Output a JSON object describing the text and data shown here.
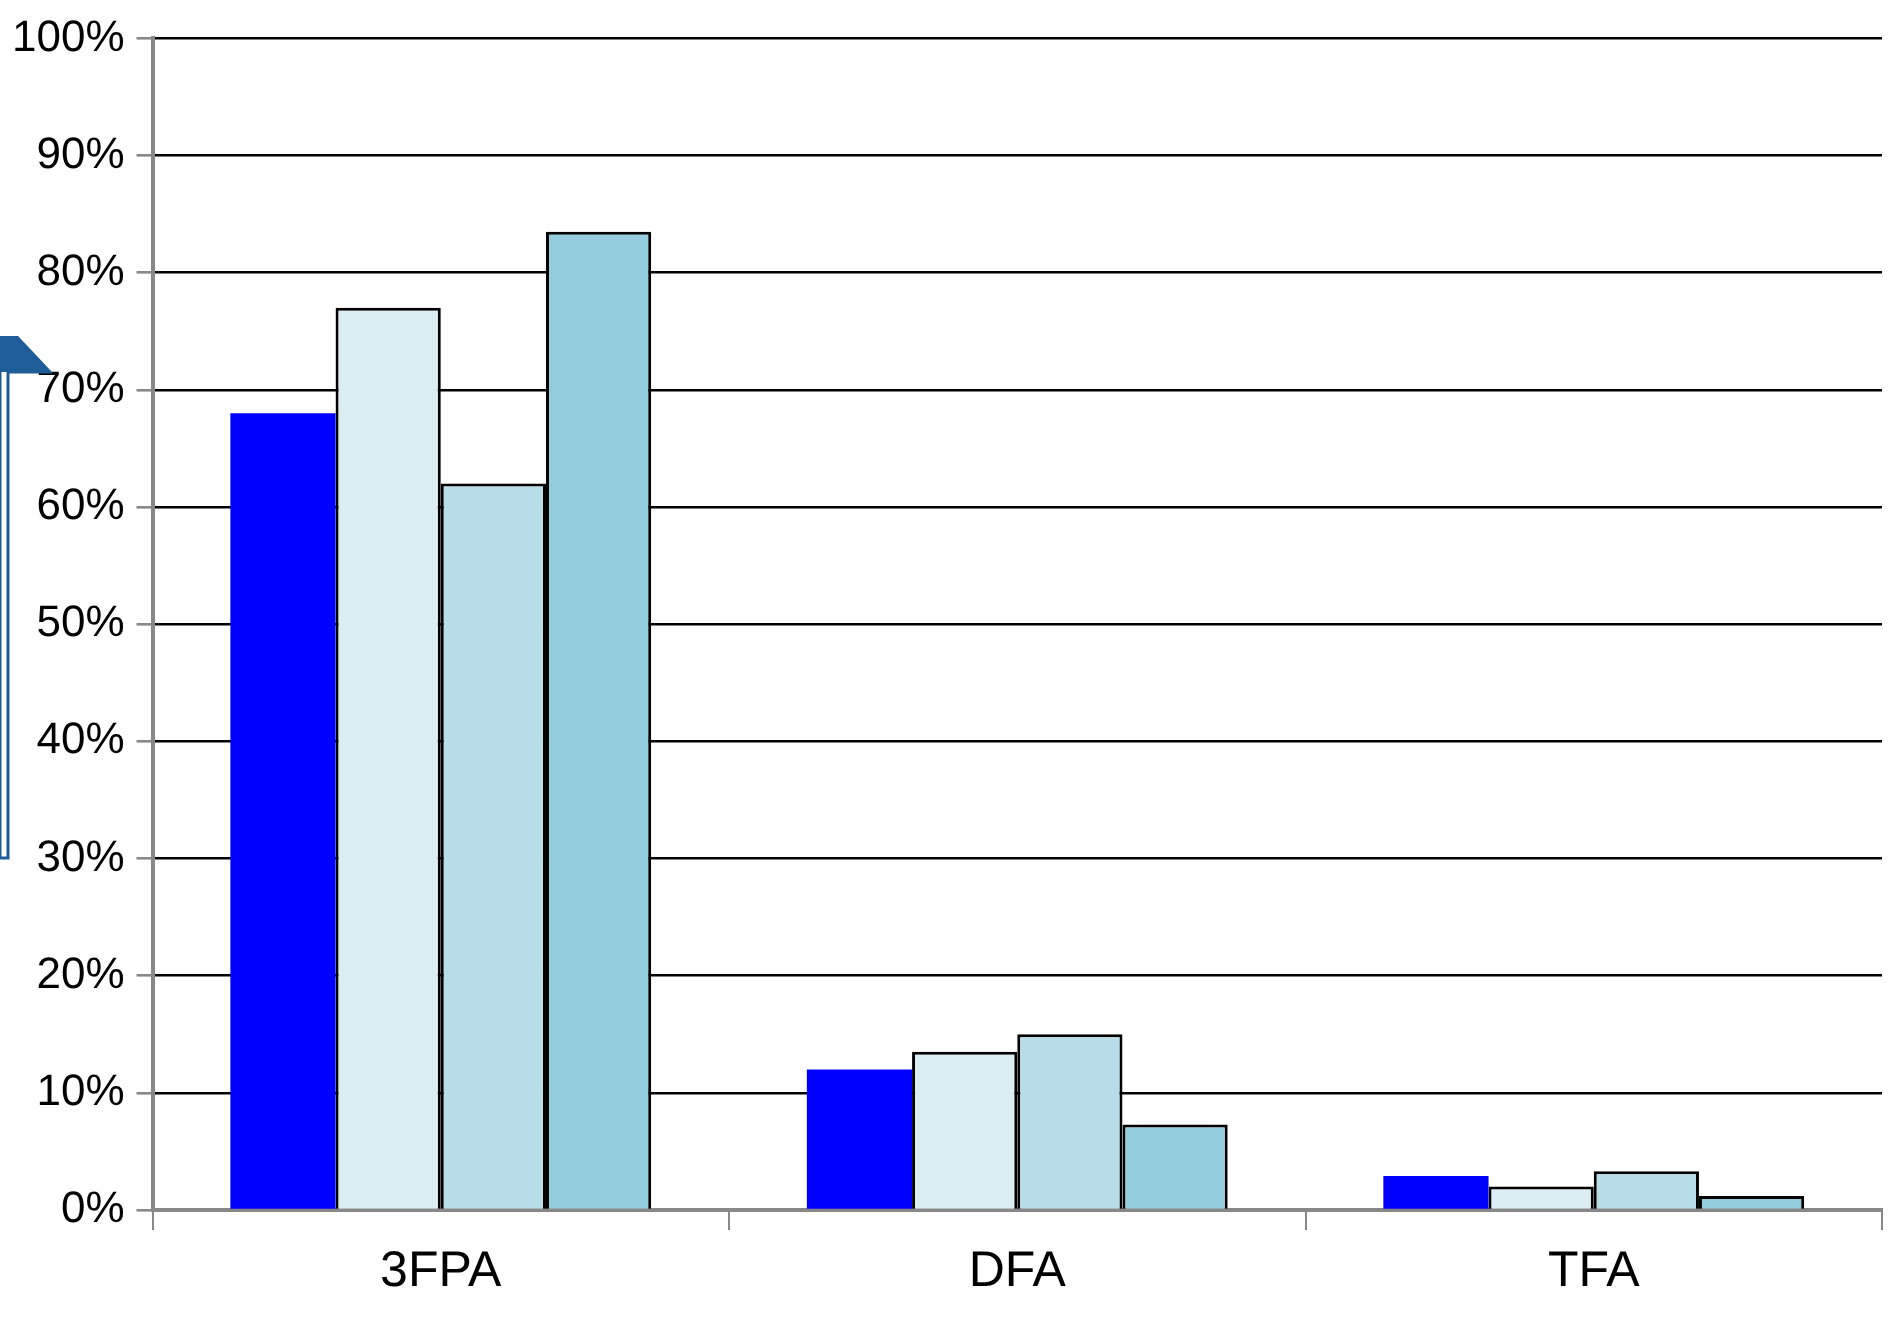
{
  "chart_data": {
    "type": "bar",
    "categories": [
      "3FPA",
      "DFA",
      "TFA"
    ],
    "series": [
      {
        "color": "#0000ff",
        "values": [
          68,
          12,
          2.9
        ]
      },
      {
        "color": "#daedf3",
        "values": [
          77,
          13.5,
          2
        ]
      },
      {
        "color": "#b7dde8",
        "values": [
          62,
          15,
          3.3
        ]
      },
      {
        "color": "#93cddd",
        "values": [
          83.5,
          7.3,
          1.2
        ]
      }
    ],
    "ylim": [
      0,
      100
    ],
    "yticks": [
      {
        "value": 0,
        "label": "0%"
      },
      {
        "value": 10,
        "label": "10%"
      },
      {
        "value": 20,
        "label": "20%"
      },
      {
        "value": 30,
        "label": "30%"
      },
      {
        "value": 40,
        "label": "40%"
      },
      {
        "value": 50,
        "label": "50%"
      },
      {
        "value": 60,
        "label": "60%"
      },
      {
        "value": 70,
        "label": "70%"
      },
      {
        "value": 80,
        "label": "80%"
      },
      {
        "value": 90,
        "label": "90%"
      },
      {
        "value": 100,
        "label": "100%"
      }
    ],
    "grid": "y",
    "legend": false
  }
}
